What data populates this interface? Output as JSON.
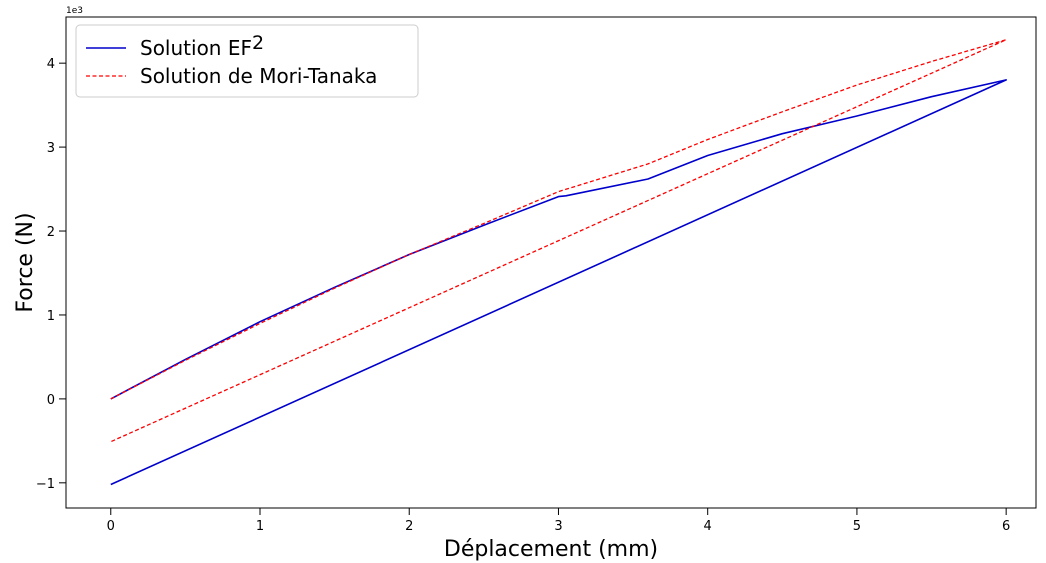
{
  "chart_data": {
    "type": "line",
    "title": "",
    "xlabel": "Déplacement  (mm)",
    "ylabel": "Force  (N)",
    "y_offset_text": "1e3",
    "xlim": [
      -0.3,
      6.2
    ],
    "ylim": [
      -1.3,
      4.55
    ],
    "xticks": [
      0,
      1,
      2,
      3,
      4,
      5,
      6
    ],
    "yticks": [
      -1,
      0,
      1,
      2,
      3,
      4
    ],
    "xtick_labels": [
      "0",
      "1",
      "2",
      "3",
      "4",
      "5",
      "6"
    ],
    "ytick_labels": [
      "−1",
      "0",
      "1",
      "2",
      "3",
      "4"
    ],
    "grid": false,
    "legend_position": "top-left",
    "series": [
      {
        "name": "Solution EF²",
        "name_base": "Solution EF",
        "name_sup": "2",
        "color": "#0000cc",
        "style": "solid",
        "x": [
          0,
          0.5,
          1,
          1.5,
          2,
          2.5,
          3,
          3.05,
          3.6,
          4.0,
          4.5,
          5.0,
          5.5,
          6.0,
          0
        ],
        "y": [
          0,
          0.47,
          0.92,
          1.33,
          1.72,
          2.07,
          2.41,
          2.42,
          2.62,
          2.9,
          3.16,
          3.37,
          3.6,
          3.8,
          -1.02
        ]
      },
      {
        "name": "Solution de Mori-Tanaka",
        "color": "#ff0000",
        "style": "dashed",
        "x": [
          0,
          0.5,
          1,
          1.5,
          2,
          2.5,
          3,
          3.6,
          4.0,
          4.5,
          5.0,
          5.5,
          6.0,
          0
        ],
        "y": [
          0,
          0.46,
          0.9,
          1.32,
          1.72,
          2.09,
          2.47,
          2.8,
          3.09,
          3.42,
          3.74,
          4.02,
          4.28,
          -0.51
        ]
      }
    ]
  }
}
